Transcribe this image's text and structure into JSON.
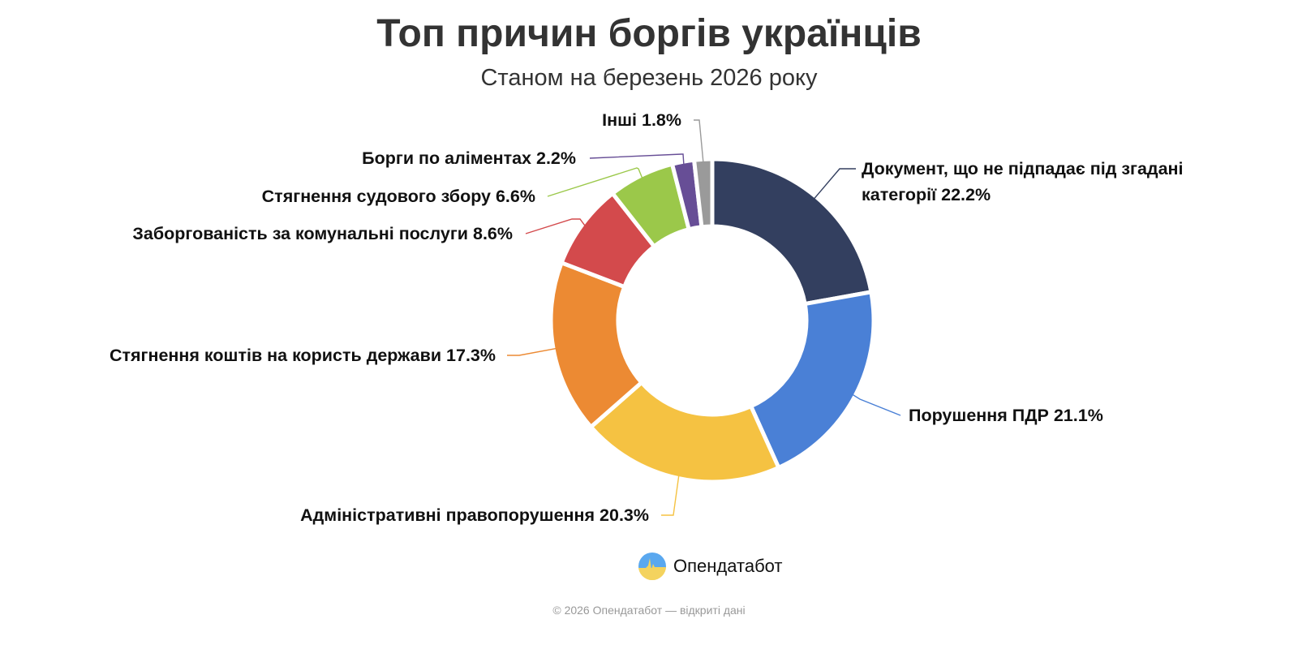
{
  "chart_data": {
    "type": "pie",
    "variant": "donut",
    "title": "Топ причин боргів українців",
    "subtitle": "Станом на березень 2026 року",
    "slices": [
      {
        "label": "Документ, що не підпадає під згадані категорії",
        "label_lines": [
          "Документ, що не підпадає під згадані",
          "категорії 22.2%"
        ],
        "value": 22.2,
        "display": "Документ, що не підпадає під згадані категорії 22.2%",
        "color": "#333f5f"
      },
      {
        "label": "Порушення ПДР",
        "value": 21.1,
        "display": "Порушення ПДР 21.1%",
        "color": "#4a80d6"
      },
      {
        "label": "Адміністративні правопорушення",
        "value": 20.3,
        "display": "Адміністративні правопорушення 20.3%",
        "color": "#f5c242"
      },
      {
        "label": "Стягнення коштів на користь держави",
        "value": 17.3,
        "display": "Стягнення коштів на користь держави 17.3%",
        "color": "#ec8a33"
      },
      {
        "label": "Заборгованість за комунальні послуги",
        "value": 8.6,
        "display": "Заборгованість за комунальні послуги 8.6%",
        "color": "#d34a4c"
      },
      {
        "label": "Стягнення судового збору",
        "value": 6.6,
        "display": "Стягнення судового збору 6.6%",
        "color": "#9bc84a"
      },
      {
        "label": "Борги по аліментах",
        "value": 2.2,
        "display": "Борги по аліментах 2.2%",
        "color": "#674e96"
      },
      {
        "label": "Інші",
        "value": 1.8,
        "display": "Інші 1.8%",
        "color": "#9a9a9a"
      }
    ]
  },
  "branding": {
    "logo_text": "Опендатабот"
  },
  "footer": "© 2026 Опендатабот — відкриті дані"
}
